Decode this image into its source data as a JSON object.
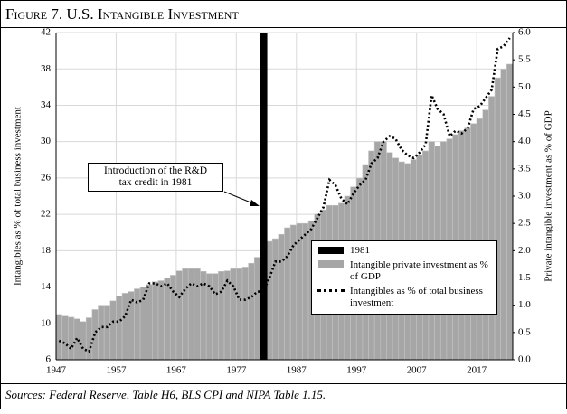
{
  "chart_data": {
    "type": "combo",
    "title": "Figure 7. U.S. Intangible Investment",
    "source": "Sources: Federal Reserve, Table H6, BLS CPI and NIPA Table 1.15.",
    "y_label": "Intangibles as % of total business investment",
    "y2_label": "Private intangible investment as % of GDP",
    "x": [
      1947,
      1948,
      1949,
      1950,
      1951,
      1952,
      1953,
      1954,
      1955,
      1956,
      1957,
      1958,
      1959,
      1960,
      1961,
      1962,
      1963,
      1964,
      1965,
      1966,
      1967,
      1968,
      1969,
      1970,
      1971,
      1972,
      1973,
      1974,
      1975,
      1976,
      1977,
      1978,
      1979,
      1980,
      1981,
      1982,
      1983,
      1984,
      1985,
      1986,
      1987,
      1988,
      1989,
      1990,
      1991,
      1992,
      1993,
      1994,
      1995,
      1996,
      1997,
      1998,
      1999,
      2000,
      2001,
      2002,
      2003,
      2004,
      2005,
      2006,
      2007,
      2008,
      2009,
      2010,
      2011,
      2012,
      2013,
      2014,
      2015,
      2016,
      2017,
      2018,
      2019,
      2020,
      2021,
      2022
    ],
    "series": [
      {
        "name": "Intangible private investment as % of GDP",
        "type": "bar",
        "axis": "y2",
        "color": "#a6a6a6",
        "values": [
          0.83,
          0.8,
          0.78,
          0.75,
          0.7,
          0.77,
          0.92,
          1.0,
          1.0,
          1.08,
          1.17,
          1.22,
          1.25,
          1.3,
          1.33,
          1.38,
          1.43,
          1.45,
          1.5,
          1.55,
          1.63,
          1.67,
          1.67,
          1.67,
          1.62,
          1.58,
          1.58,
          1.62,
          1.63,
          1.67,
          1.67,
          1.7,
          1.77,
          1.88,
          2.0,
          2.17,
          2.22,
          2.3,
          2.42,
          2.47,
          2.5,
          2.5,
          2.55,
          2.67,
          2.75,
          2.83,
          2.83,
          2.87,
          3.0,
          3.17,
          3.33,
          3.58,
          3.83,
          4.0,
          4.0,
          3.8,
          3.7,
          3.63,
          3.6,
          3.67,
          3.75,
          3.83,
          4.0,
          3.92,
          4.0,
          4.05,
          4.13,
          4.2,
          4.25,
          4.33,
          4.42,
          4.58,
          4.83,
          5.17,
          5.33,
          5.42
        ]
      },
      {
        "name": "Intangibles as % of total business investment",
        "type": "line",
        "axis": "y",
        "color": "#000000",
        "values": [
          8.1,
          7.8,
          7.2,
          8.4,
          7.2,
          6.9,
          9,
          9.6,
          9.6,
          10.2,
          10.2,
          10.8,
          12.6,
          12.3,
          12.6,
          14.4,
          14.4,
          14.1,
          14.4,
          13.5,
          12.9,
          13.8,
          14.4,
          14.1,
          14.4,
          14.1,
          13.2,
          13.5,
          14.7,
          14.1,
          12.6,
          12.6,
          12.9,
          13.5,
          13.5,
          15,
          16.8,
          16.8,
          17.4,
          18.6,
          19.2,
          19.8,
          20.4,
          21.6,
          22.8,
          25.8,
          25.2,
          23.7,
          23.1,
          24.3,
          25.2,
          25.8,
          27.6,
          28.2,
          30,
          30.6,
          30.3,
          29.1,
          28.5,
          28.2,
          28.8,
          29.7,
          35.1,
          33.6,
          33,
          30.6,
          31.2,
          30.9,
          31.5,
          33.6,
          33.9,
          34.8,
          35.7,
          40.2,
          40.5,
          41.4
        ]
      }
    ],
    "marker": {
      "name": "1981",
      "x": 1981,
      "color": "#000000"
    },
    "annotation": [
      "Introduction of the R&D",
      "tax credit in 1981"
    ],
    "xlim": [
      1947,
      2023
    ],
    "xticks": [
      1947,
      1957,
      1967,
      1977,
      1987,
      1997,
      2007,
      2017
    ],
    "ylim": [
      6,
      42
    ],
    "yticks": [
      6,
      10,
      14,
      18,
      22,
      26,
      30,
      34,
      38,
      42
    ],
    "y2lim": [
      0,
      6
    ],
    "y2ticks": [
      {
        "value": 0,
        "label": "0.0"
      },
      0.5,
      {
        "value": 1,
        "label": "1.0"
      },
      1.5,
      {
        "value": 2,
        "label": "2.0"
      },
      2.5,
      {
        "value": 3,
        "label": "3.0"
      },
      3.5,
      {
        "value": 4,
        "label": "4.0"
      },
      4.5,
      {
        "value": 5,
        "label": "5.0"
      },
      5.5,
      {
        "value": 6,
        "label": "6.0"
      }
    ],
    "grid": true
  }
}
